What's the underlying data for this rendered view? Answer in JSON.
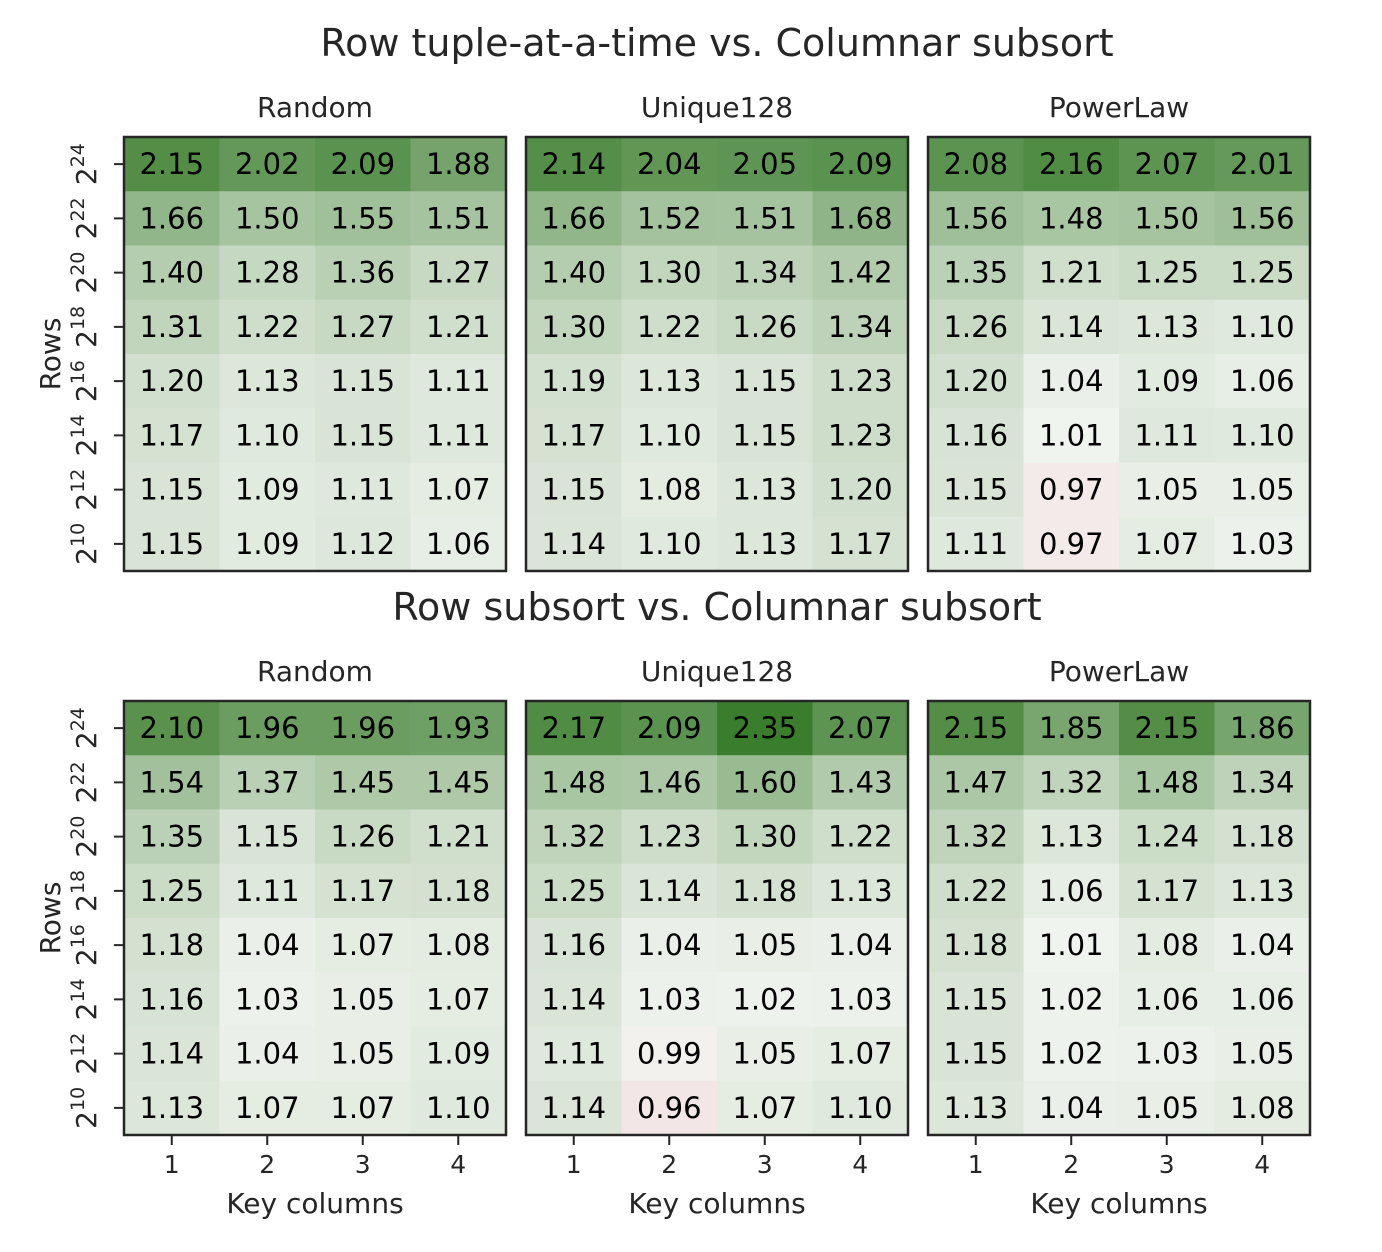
{
  "chart_data": [
    {
      "type": "heatmap",
      "title": "Row tuple-at-a-time vs. Columnar subsort",
      "ylabel": "Rows",
      "xlabel": "",
      "x": [
        "1",
        "2",
        "3",
        "4"
      ],
      "y": [
        "2^24",
        "2^22",
        "2^20",
        "2^18",
        "2^16",
        "2^14",
        "2^12",
        "2^10"
      ],
      "y_tick_base": "2",
      "y_tick_exponents": [
        "24",
        "22",
        "20",
        "18",
        "16",
        "14",
        "12",
        "10"
      ],
      "panels": [
        {
          "name": "Random",
          "values": [
            [
              2.15,
              2.02,
              2.09,
              1.88
            ],
            [
              1.66,
              1.5,
              1.55,
              1.51
            ],
            [
              1.4,
              1.28,
              1.36,
              1.27
            ],
            [
              1.31,
              1.22,
              1.27,
              1.21
            ],
            [
              1.2,
              1.13,
              1.15,
              1.11
            ],
            [
              1.17,
              1.1,
              1.15,
              1.11
            ],
            [
              1.15,
              1.09,
              1.11,
              1.07
            ],
            [
              1.15,
              1.09,
              1.12,
              1.06
            ]
          ]
        },
        {
          "name": "Unique128",
          "values": [
            [
              2.14,
              2.04,
              2.05,
              2.09
            ],
            [
              1.66,
              1.52,
              1.51,
              1.68
            ],
            [
              1.4,
              1.3,
              1.34,
              1.42
            ],
            [
              1.3,
              1.22,
              1.26,
              1.34
            ],
            [
              1.19,
              1.13,
              1.15,
              1.23
            ],
            [
              1.17,
              1.1,
              1.15,
              1.23
            ],
            [
              1.15,
              1.08,
              1.13,
              1.2
            ],
            [
              1.14,
              1.1,
              1.13,
              1.17
            ]
          ]
        },
        {
          "name": "PowerLaw",
          "values": [
            [
              2.08,
              2.16,
              2.07,
              2.01
            ],
            [
              1.56,
              1.48,
              1.5,
              1.56
            ],
            [
              1.35,
              1.21,
              1.25,
              1.25
            ],
            [
              1.26,
              1.14,
              1.13,
              1.1
            ],
            [
              1.2,
              1.04,
              1.09,
              1.06
            ],
            [
              1.16,
              1.01,
              1.11,
              1.1
            ],
            [
              1.15,
              0.97,
              1.05,
              1.05
            ],
            [
              1.11,
              0.97,
              1.07,
              1.03
            ]
          ]
        }
      ]
    },
    {
      "type": "heatmap",
      "title": "Row subsort vs. Columnar subsort",
      "ylabel": "Rows",
      "xlabel": "Key columns",
      "x": [
        "1",
        "2",
        "3",
        "4"
      ],
      "y": [
        "2^24",
        "2^22",
        "2^20",
        "2^18",
        "2^16",
        "2^14",
        "2^12",
        "2^10"
      ],
      "y_tick_base": "2",
      "y_tick_exponents": [
        "24",
        "22",
        "20",
        "18",
        "16",
        "14",
        "12",
        "10"
      ],
      "panels": [
        {
          "name": "Random",
          "values": [
            [
              2.1,
              1.96,
              1.96,
              1.93
            ],
            [
              1.54,
              1.37,
              1.45,
              1.45
            ],
            [
              1.35,
              1.15,
              1.26,
              1.21
            ],
            [
              1.25,
              1.11,
              1.17,
              1.18
            ],
            [
              1.18,
              1.04,
              1.07,
              1.08
            ],
            [
              1.16,
              1.03,
              1.05,
              1.07
            ],
            [
              1.14,
              1.04,
              1.05,
              1.09
            ],
            [
              1.13,
              1.07,
              1.07,
              1.1
            ]
          ]
        },
        {
          "name": "Unique128",
          "values": [
            [
              2.17,
              2.09,
              2.35,
              2.07
            ],
            [
              1.48,
              1.46,
              1.6,
              1.43
            ],
            [
              1.32,
              1.23,
              1.3,
              1.22
            ],
            [
              1.25,
              1.14,
              1.18,
              1.13
            ],
            [
              1.16,
              1.04,
              1.05,
              1.04
            ],
            [
              1.14,
              1.03,
              1.02,
              1.03
            ],
            [
              1.11,
              0.99,
              1.05,
              1.07
            ],
            [
              1.14,
              0.96,
              1.07,
              1.1
            ]
          ]
        },
        {
          "name": "PowerLaw",
          "values": [
            [
              2.15,
              1.85,
              2.15,
              1.86
            ],
            [
              1.47,
              1.32,
              1.48,
              1.34
            ],
            [
              1.32,
              1.13,
              1.24,
              1.18
            ],
            [
              1.22,
              1.06,
              1.17,
              1.13
            ],
            [
              1.18,
              1.01,
              1.08,
              1.04
            ],
            [
              1.15,
              1.02,
              1.06,
              1.06
            ],
            [
              1.15,
              1.02,
              1.03,
              1.05
            ],
            [
              1.13,
              1.04,
              1.05,
              1.08
            ]
          ]
        }
      ]
    }
  ],
  "colors": {
    "high": "#3a7d2c",
    "low": "#f3e6e6",
    "neutral": "#f2f5f1",
    "frame": "#262626"
  },
  "color_scale": {
    "center": 1.0,
    "max": 2.35,
    "min": 0.96
  }
}
